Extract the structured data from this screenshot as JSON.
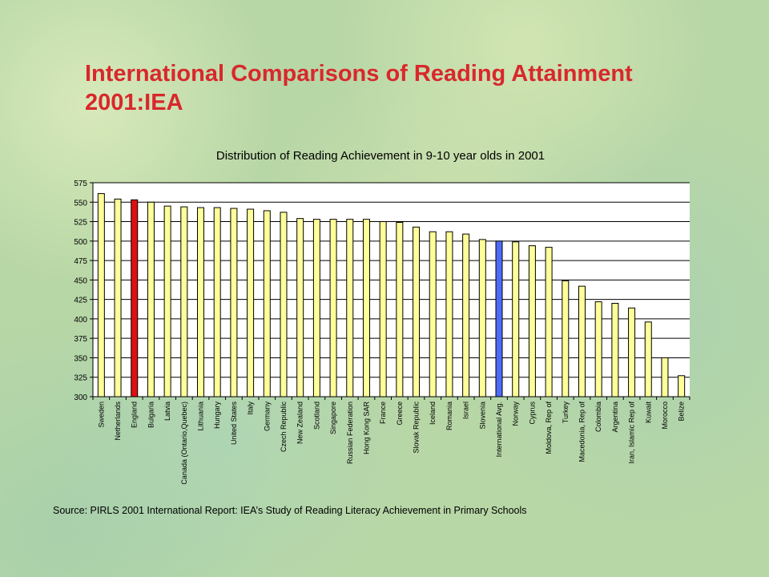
{
  "slide": {
    "title": "International Comparisons of Reading Attainment 2001:IEA",
    "source": "Source: PIRLS 2001 International Report: IEA’s Study of Reading Literacy Achievement in Primary Schools"
  },
  "colors": {
    "title": "#d8282c",
    "bar_default": "#ffff99",
    "bar_england": "#e01010",
    "bar_average": "#4d6bf5"
  },
  "chart_data": {
    "type": "bar",
    "title": "Distribution of Reading Achievement in 9-10 year olds in 2001",
    "xlabel": "",
    "ylabel": "",
    "ylim": [
      300,
      575
    ],
    "yticks": [
      300,
      325,
      350,
      375,
      400,
      425,
      450,
      475,
      500,
      525,
      550,
      575
    ],
    "grid": true,
    "categories": [
      "Sweden",
      "Netherlands",
      "England",
      "Bulgaria",
      "Latvia",
      "Canada (Ontario,Quebec)",
      "Lithuania",
      "Hungary",
      "United States",
      "Italy",
      "Germany",
      "Czech Republic",
      "New Zealand",
      "Scotland",
      "Singapore",
      "Russian Federation",
      "Hong Kong SAR",
      "France",
      "Greece",
      "Slovak Republic",
      "Iceland",
      "Romania",
      "Israel",
      "Slovenia",
      "International Avg.",
      "Norway",
      "Cyprus",
      "Moldova, Rep of",
      "Turkey",
      "Macedonia, Rep of",
      "Colombia",
      "Argentina",
      "Iran, Islamic Rep of",
      "Kuwait",
      "Morocco",
      "Belize"
    ],
    "values": [
      561,
      554,
      553,
      550,
      545,
      544,
      543,
      543,
      542,
      541,
      539,
      537,
      529,
      528,
      528,
      528,
      528,
      525,
      524,
      518,
      512,
      512,
      509,
      502,
      500,
      499,
      494,
      492,
      449,
      442,
      422,
      420,
      414,
      396,
      350,
      327
    ],
    "highlights": {
      "England": "bar_england",
      "International Avg.": "bar_average"
    }
  }
}
